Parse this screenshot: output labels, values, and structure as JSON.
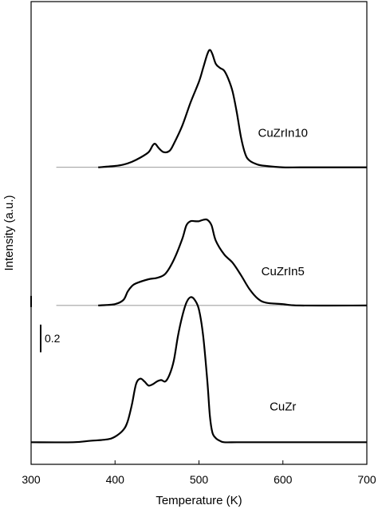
{
  "chart_data": {
    "type": "line",
    "xlabel": "Temperature (K)",
    "ylabel": "Intensity (a.u.)",
    "xlim": [
      300,
      700
    ],
    "x_ticks": [
      300,
      400,
      500,
      600,
      700
    ],
    "y_ticks_shown": false,
    "grid": false,
    "scale_bar": {
      "label": "0.2",
      "value": 0.2
    },
    "series": [
      {
        "name": "CuZrIn10",
        "baseline": 2.0,
        "x": [
          300,
          380,
          400,
          410,
          420,
          430,
          440,
          445,
          448,
          452,
          458,
          465,
          470,
          480,
          490,
          500,
          505,
          510,
          513,
          516,
          520,
          525,
          530,
          535,
          540,
          545,
          550,
          555,
          560,
          570,
          580,
          600,
          620,
          650,
          700
        ],
        "y": [
          2.0,
          2.0,
          2.01,
          2.02,
          2.04,
          2.07,
          2.11,
          2.16,
          2.17,
          2.14,
          2.11,
          2.12,
          2.17,
          2.3,
          2.47,
          2.62,
          2.72,
          2.82,
          2.85,
          2.82,
          2.75,
          2.72,
          2.7,
          2.64,
          2.55,
          2.4,
          2.22,
          2.1,
          2.05,
          2.02,
          2.01,
          2.0,
          2.0,
          2.0,
          2.0
        ]
      },
      {
        "name": "CuZrIn5",
        "baseline": 1.0,
        "x": [
          300,
          380,
          400,
          410,
          415,
          420,
          425,
          440,
          450,
          460,
          470,
          480,
          485,
          490,
          495,
          500,
          505,
          510,
          515,
          520,
          530,
          540,
          550,
          560,
          570,
          580,
          600,
          620,
          700
        ],
        "y": [
          1.0,
          1.0,
          1.01,
          1.04,
          1.1,
          1.14,
          1.16,
          1.19,
          1.2,
          1.23,
          1.33,
          1.48,
          1.58,
          1.61,
          1.61,
          1.61,
          1.62,
          1.62,
          1.58,
          1.47,
          1.37,
          1.31,
          1.22,
          1.12,
          1.05,
          1.02,
          1.01,
          1.0,
          1.0
        ]
      },
      {
        "name": "CuZr",
        "baseline": 0.0,
        "x": [
          300,
          350,
          370,
          390,
          400,
          410,
          415,
          420,
          425,
          430,
          435,
          440,
          445,
          450,
          455,
          460,
          465,
          470,
          475,
          480,
          485,
          490,
          495,
          500,
          505,
          510,
          513,
          516,
          520,
          525,
          530,
          545,
          570,
          600,
          650,
          700
        ],
        "y": [
          0.01,
          0.01,
          0.02,
          0.03,
          0.05,
          0.1,
          0.16,
          0.28,
          0.43,
          0.47,
          0.45,
          0.42,
          0.43,
          0.45,
          0.46,
          0.45,
          0.5,
          0.6,
          0.78,
          0.92,
          1.02,
          1.06,
          1.04,
          0.97,
          0.78,
          0.45,
          0.2,
          0.08,
          0.04,
          0.02,
          0.01,
          0.01,
          0.01,
          0.01,
          0.01,
          0.01
        ]
      }
    ]
  }
}
